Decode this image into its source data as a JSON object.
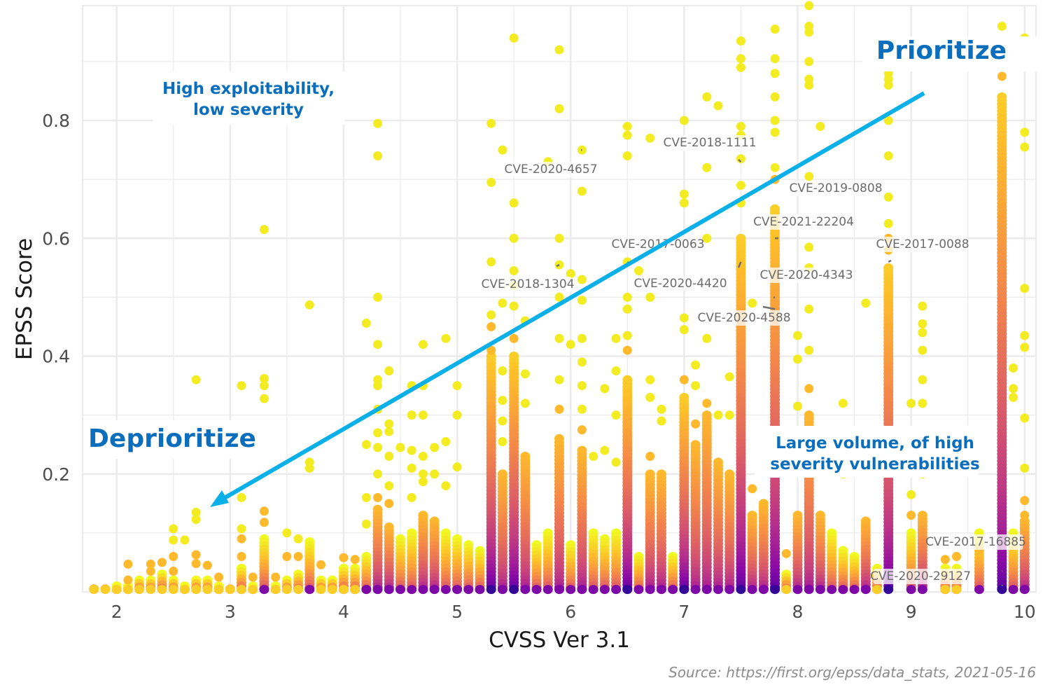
{
  "chart_data": {
    "type": "scatter",
    "xlabel": "CVSS Ver 3.1",
    "ylabel": "EPSS Score",
    "xlim": [
      1.7,
      10.1
    ],
    "ylim": [
      0,
      0.995
    ],
    "xticks": [
      "2",
      "3",
      "4",
      "5",
      "6",
      "7",
      "8",
      "9",
      "10"
    ],
    "yticks": [
      "0.2",
      "0.4",
      "0.6",
      "0.8"
    ],
    "grid": true,
    "colormap": "plasma (dark purple = dense, yellow = sparse)",
    "colors": {
      "arrow": "#0bb0e8",
      "note": "#0a6ebd",
      "grid": "#ebebeb"
    },
    "columns": [
      {
        "x": 1.8,
        "y": [],
        "dense_max": 0.005
      },
      {
        "x": 1.9,
        "y": [],
        "dense_max": 0.005
      },
      {
        "x": 2.0,
        "y": [],
        "dense_max": 0.01
      },
      {
        "x": 2.1,
        "y": [
          0.047,
          0.02
        ],
        "dense_max": 0.01
      },
      {
        "x": 2.2,
        "y": [],
        "dense_max": 0.02
      },
      {
        "x": 2.3,
        "y": [
          0.047,
          0.035
        ],
        "dense_max": 0.02
      },
      {
        "x": 2.4,
        "y": [
          0.05
        ],
        "dense_max": 0.03
      },
      {
        "x": 2.5,
        "y": [
          0.107,
          0.088,
          0.06,
          0.035
        ],
        "dense_max": 0.02
      },
      {
        "x": 2.6,
        "y": [
          0.088
        ],
        "dense_max": 0.01
      },
      {
        "x": 2.7,
        "y": [
          0.36,
          0.135,
          0.123,
          0.063,
          0.048
        ],
        "dense_max": 0.02
      },
      {
        "x": 2.8,
        "y": [
          0.045
        ],
        "dense_max": 0.02
      },
      {
        "x": 2.9,
        "y": [
          0.025
        ],
        "dense_max": 0.01
      },
      {
        "x": 3.0,
        "y": [],
        "dense_max": 0.005
      },
      {
        "x": 3.1,
        "y": [
          0.35,
          0.16,
          0.107,
          0.09,
          0.06
        ],
        "dense_max": 0.04
      },
      {
        "x": 3.2,
        "y": [
          0.025
        ],
        "dense_max": 0.01
      },
      {
        "x": 3.3,
        "y": [
          0.615,
          0.362,
          0.35,
          0.328,
          0.137,
          0.118
        ],
        "dense_max": 0.09
      },
      {
        "x": 3.4,
        "y": [
          0.025
        ],
        "dense_max": 0.01
      },
      {
        "x": 3.5,
        "y": [
          0.1,
          0.06
        ],
        "dense_max": 0.02
      },
      {
        "x": 3.6,
        "y": [
          0.09,
          0.06
        ],
        "dense_max": 0.03
      },
      {
        "x": 3.7,
        "y": [
          0.487,
          0.22,
          0.21
        ],
        "dense_max": 0.085
      },
      {
        "x": 3.8,
        "y": [
          0.046
        ],
        "dense_max": 0.02
      },
      {
        "x": 3.9,
        "y": [],
        "dense_max": 0.02
      },
      {
        "x": 4.0,
        "y": [
          0.058
        ],
        "dense_max": 0.04
      },
      {
        "x": 4.1,
        "y": [
          0.055
        ],
        "dense_max": 0.04
      },
      {
        "x": 4.2,
        "y": [
          0.456,
          0.25,
          0.16,
          0.115
        ],
        "dense_max": 0.06
      },
      {
        "x": 4.3,
        "y": [
          0.795,
          0.74,
          0.5,
          0.42,
          0.36,
          0.35,
          0.31,
          0.27,
          0.245,
          0.2,
          0.16
        ],
        "dense_max": 0.14
      },
      {
        "x": 4.4,
        "y": [
          0.375,
          0.285,
          0.272,
          0.23,
          0.18,
          0.15
        ],
        "dense_max": 0.11
      },
      {
        "x": 4.5,
        "y": [
          0.245
        ],
        "dense_max": 0.09
      },
      {
        "x": 4.6,
        "y": [
          0.35,
          0.3,
          0.24,
          0.21,
          0.16
        ],
        "dense_max": 0.1
      },
      {
        "x": 4.7,
        "y": [
          0.42,
          0.35,
          0.3,
          0.23,
          0.2,
          0.187
        ],
        "dense_max": 0.13
      },
      {
        "x": 4.8,
        "y": [
          0.245,
          0.2
        ],
        "dense_max": 0.12
      },
      {
        "x": 4.9,
        "y": [
          0.43,
          0.255,
          0.18
        ],
        "dense_max": 0.1
      },
      {
        "x": 5.0,
        "y": [
          0.35,
          0.3,
          0.212
        ],
        "dense_max": 0.09
      },
      {
        "x": 5.1,
        "y": [],
        "dense_max": 0.08
      },
      {
        "x": 5.2,
        "y": [],
        "dense_max": 0.07
      },
      {
        "x": 5.3,
        "y": [
          0.795,
          0.695,
          0.56,
          0.47,
          0.45,
          0.41
        ],
        "dense_max": 0.4
      },
      {
        "x": 5.4,
        "y": [
          0.75,
          0.49,
          0.375,
          0.325,
          0.29,
          0.255
        ],
        "dense_max": 0.2
      },
      {
        "x": 5.5,
        "y": [
          0.94,
          0.66,
          0.6,
          0.545,
          0.52,
          0.485,
          0.43
        ],
        "dense_max": 0.4
      },
      {
        "x": 5.6,
        "y": [
          0.46,
          0.37,
          0.32
        ],
        "dense_max": 0.23
      },
      {
        "x": 5.7,
        "y": [],
        "dense_max": 0.08
      },
      {
        "x": 5.8,
        "y": [
          0.73
        ],
        "dense_max": 0.1
      },
      {
        "x": 5.9,
        "y": [
          0.92,
          0.82,
          0.6,
          0.555,
          0.5,
          0.43,
          0.36,
          0.31
        ],
        "dense_max": 0.26
      },
      {
        "x": 6.0,
        "y": [
          0.54,
          0.42
        ],
        "dense_max": 0.08
      },
      {
        "x": 6.1,
        "y": [
          0.75,
          0.68,
          0.53,
          0.495,
          0.43,
          0.39,
          0.35,
          0.31,
          0.275
        ],
        "dense_max": 0.24
      },
      {
        "x": 6.2,
        "y": [
          0.23
        ],
        "dense_max": 0.1
      },
      {
        "x": 6.3,
        "y": [
          0.345,
          0.24
        ],
        "dense_max": 0.09
      },
      {
        "x": 6.4,
        "y": [
          0.43,
          0.375,
          0.3,
          0.22
        ],
        "dense_max": 0.1
      },
      {
        "x": 6.5,
        "y": [
          0.79,
          0.775,
          0.74,
          0.56,
          0.5,
          0.48,
          0.435,
          0.41
        ],
        "dense_max": 0.36
      },
      {
        "x": 6.6,
        "y": [
          0.545
        ],
        "dense_max": 0.06
      },
      {
        "x": 6.7,
        "y": [
          0.77,
          0.5,
          0.36,
          0.33,
          0.23
        ],
        "dense_max": 0.2
      },
      {
        "x": 6.8,
        "y": [
          0.31,
          0.29
        ],
        "dense_max": 0.2
      },
      {
        "x": 6.9,
        "y": [],
        "dense_max": 0.06
      },
      {
        "x": 7.0,
        "y": [
          0.8,
          0.675,
          0.66,
          0.465,
          0.445,
          0.36
        ],
        "dense_max": 0.33
      },
      {
        "x": 7.1,
        "y": [
          0.385,
          0.35,
          0.285
        ],
        "dense_max": 0.25
      },
      {
        "x": 7.2,
        "y": [
          0.84,
          0.72,
          0.6,
          0.43,
          0.32
        ],
        "dense_max": 0.3
      },
      {
        "x": 7.3,
        "y": [
          0.825,
          0.3
        ],
        "dense_max": 0.22
      },
      {
        "x": 7.4,
        "y": [
          0.365,
          0.3
        ],
        "dense_max": 0.2
      },
      {
        "x": 7.5,
        "y": [
          0.935,
          0.905,
          0.89,
          0.79,
          0.775,
          0.735,
          0.69,
          0.66
        ],
        "dense_max": 0.6
      },
      {
        "x": 7.6,
        "y": [
          0.49,
          0.175
        ],
        "dense_max": 0.13
      },
      {
        "x": 7.7,
        "y": [],
        "dense_max": 0.15
      },
      {
        "x": 7.8,
        "y": [
          0.955,
          0.905,
          0.88,
          0.84,
          0.8,
          0.78,
          0.72,
          0.7
        ],
        "dense_max": 0.65
      },
      {
        "x": 7.9,
        "y": [
          0.065
        ],
        "dense_max": 0.03
      },
      {
        "x": 8.0,
        "y": [
          0.435,
          0.395,
          0.315
        ],
        "dense_max": 0.13
      },
      {
        "x": 8.1,
        "y": [
          0.995,
          0.96,
          0.95,
          0.9,
          0.87,
          0.86,
          0.705,
          0.585,
          0.55,
          0.48,
          0.41,
          0.345
        ],
        "dense_max": 0.3
      },
      {
        "x": 8.2,
        "y": [
          0.79
        ],
        "dense_max": 0.13
      },
      {
        "x": 8.3,
        "y": [],
        "dense_max": 0.1
      },
      {
        "x": 8.4,
        "y": [
          0.32,
          0.2
        ],
        "dense_max": 0.07
      },
      {
        "x": 8.5,
        "y": [],
        "dense_max": 0.06
      },
      {
        "x": 8.6,
        "y": [
          0.49
        ],
        "dense_max": 0.12
      },
      {
        "x": 8.7,
        "y": [],
        "dense_max": 0.04
      },
      {
        "x": 8.8,
        "y": [
          0.88,
          0.87,
          0.86,
          0.8,
          0.74,
          0.67,
          0.625,
          0.6,
          0.58
        ],
        "dense_max": 0.55
      },
      {
        "x": 9.0,
        "y": [
          0.32,
          0.165,
          0.13
        ],
        "dense_max": 0.1
      },
      {
        "x": 9.1,
        "y": [
          0.485,
          0.455,
          0.44,
          0.41,
          0.36,
          0.32,
          0.2
        ],
        "dense_max": 0.13
      },
      {
        "x": 9.3,
        "y": [
          0.055
        ],
        "dense_max": 0.04
      },
      {
        "x": 9.4,
        "y": [
          0.06
        ],
        "dense_max": 0.04
      },
      {
        "x": 9.6,
        "y": [
          0.07
        ],
        "dense_max": 0.1
      },
      {
        "x": 9.8,
        "y": [
          0.96,
          0.875
        ],
        "dense_max": 0.84
      },
      {
        "x": 9.9,
        "y": [
          0.38,
          0.345,
          0.33
        ],
        "dense_max": 0.1
      },
      {
        "x": 10.0,
        "y": [
          0.94,
          0.93,
          0.78,
          0.755,
          0.515,
          0.435,
          0.415,
          0.295,
          0.21,
          0.155,
          0.13
        ],
        "dense_max": 0.12
      }
    ],
    "labels": [
      {
        "text": "CVE-2018-1111",
        "x": 7.5,
        "y": 0.73
      },
      {
        "text": "CVE-2020-4657",
        "x": 6.1,
        "y": 0.75
      },
      {
        "text": "CVE-2019-0808",
        "x": 7.8,
        "y": 0.7
      },
      {
        "text": "CVE-2021-22204",
        "x": 7.8,
        "y": 0.6
      },
      {
        "text": "CVE-2017-0063",
        "x": 6.5,
        "y": 0.56
      },
      {
        "text": "CVE-2017-0088",
        "x": 8.8,
        "y": 0.56
      },
      {
        "text": "CVE-2018-1304",
        "x": 5.9,
        "y": 0.555
      },
      {
        "text": "CVE-2020-4420",
        "x": 7.5,
        "y": 0.56
      },
      {
        "text": "CVE-2020-4343",
        "x": 7.8,
        "y": 0.5
      },
      {
        "text": "CVE-2020-4588",
        "x": 7.8,
        "y": 0.48
      },
      {
        "text": "CVE-2017-16885",
        "x": 9.8,
        "y": 0.035
      },
      {
        "text": "CVE-2020-29127",
        "x": 9.8,
        "y": 0.01
      }
    ],
    "annotations": {
      "prioritize": "Prioritize",
      "deprioritize": "Deprioritize",
      "high_exploit_1": "High exploitability,",
      "high_exploit_2": "low severity",
      "large_volume_1": "Large volume, of high",
      "large_volume_2": "severity vulnerabilities"
    },
    "source": "Source: https://first.org/epss/data_stats, 2021-05-16"
  }
}
